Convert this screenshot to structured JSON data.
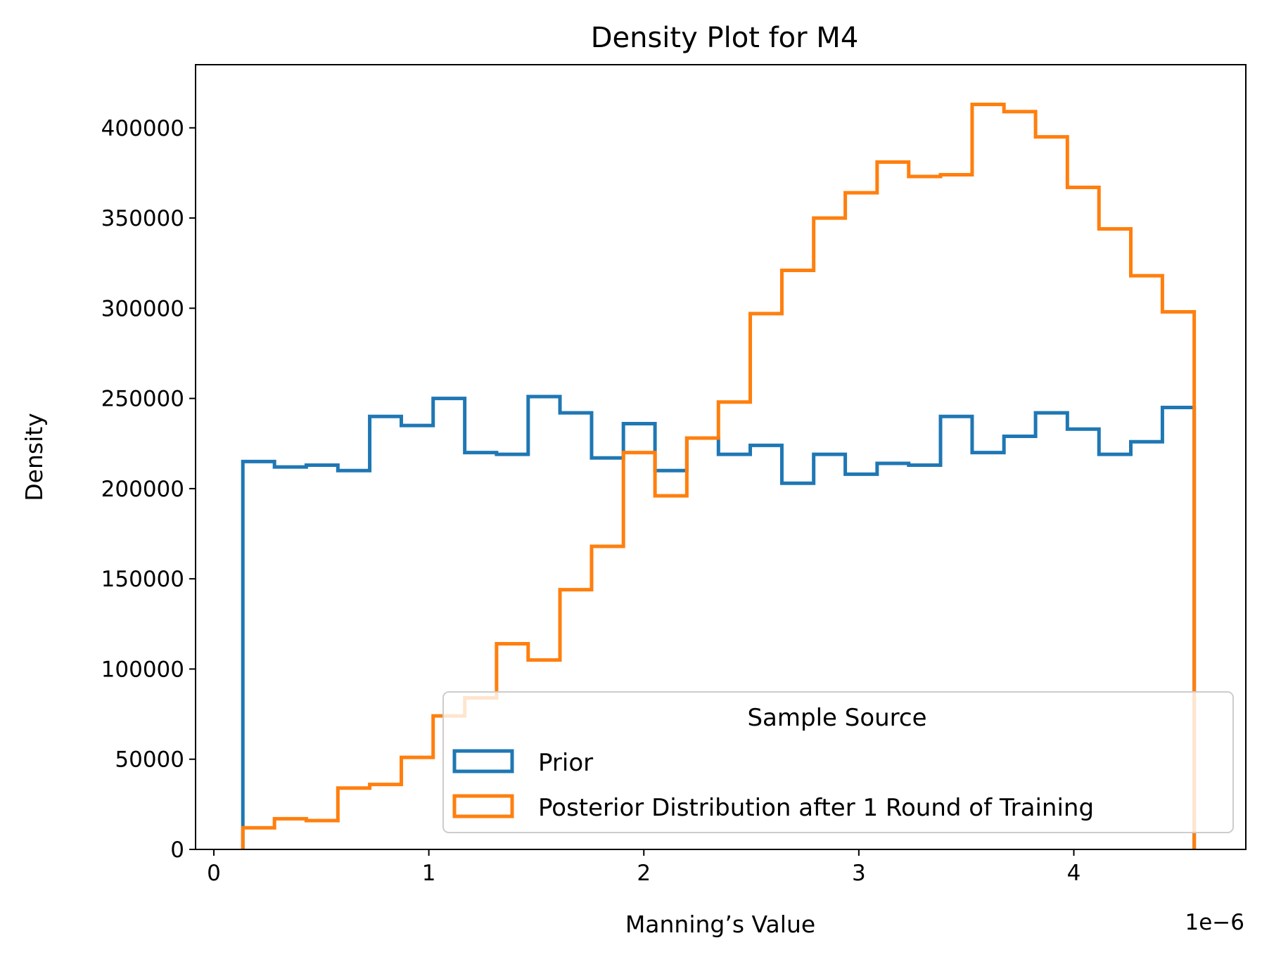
{
  "chart_data": {
    "type": "step-histogram",
    "title": "Density Plot for M4",
    "xlabel": "Manning’s Value",
    "ylabel": "Density",
    "x_offset_label": "1e−6",
    "x_scale": 1e-06,
    "xlim": [
      -0.085,
      4.8
    ],
    "ylim": [
      0,
      435000
    ],
    "x_ticks": [
      0,
      1,
      2,
      3,
      4
    ],
    "x_tick_labels": [
      "0",
      "1",
      "2",
      "3",
      "4"
    ],
    "y_ticks": [
      0,
      50000,
      100000,
      150000,
      200000,
      250000,
      300000,
      350000,
      400000
    ],
    "y_tick_labels": [
      "0",
      "50000",
      "100000",
      "150000",
      "200000",
      "250000",
      "300000",
      "350000",
      "400000"
    ],
    "bin_edges": [
      0.135,
      0.282,
      0.43,
      0.577,
      0.725,
      0.872,
      1.02,
      1.167,
      1.315,
      1.462,
      1.61,
      1.757,
      1.905,
      2.052,
      2.2,
      2.347,
      2.495,
      2.642,
      2.79,
      2.937,
      3.085,
      3.232,
      3.38,
      3.527,
      3.675,
      3.822,
      3.97,
      4.117,
      4.265,
      4.412,
      4.56
    ],
    "legend": {
      "title": "Sample Source",
      "position": "lower right"
    },
    "series": [
      {
        "name": "Prior",
        "color": "#1f77b4",
        "values": [
          215000,
          212000,
          213000,
          210000,
          240000,
          235000,
          250000,
          220000,
          219000,
          251000,
          242000,
          217000,
          236000,
          210000,
          228000,
          219000,
          224000,
          203000,
          219000,
          208000,
          214000,
          213000,
          240000,
          220000,
          229000,
          242000,
          233000,
          219000,
          226000,
          245000
        ]
      },
      {
        "name": "Posterior Distribution after 1 Round of Training",
        "color": "#ff7f0e",
        "values": [
          12000,
          17000,
          16000,
          34000,
          36000,
          51000,
          74000,
          84000,
          114000,
          105000,
          144000,
          168000,
          220000,
          196000,
          228000,
          248000,
          297000,
          321000,
          350000,
          364000,
          381000,
          373000,
          374000,
          413000,
          409000,
          395000,
          367000,
          344000,
          318000,
          298000
        ]
      }
    ]
  }
}
